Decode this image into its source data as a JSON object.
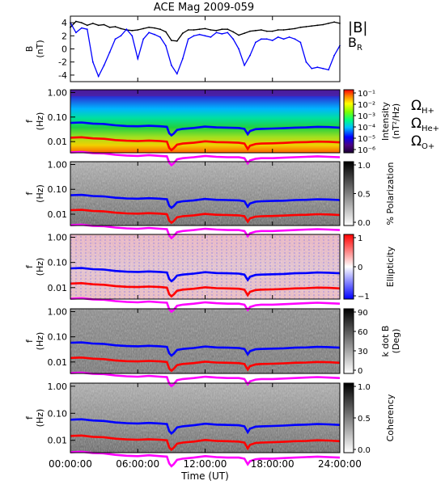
{
  "chart_data": {
    "title": "ACE Mag 2009-059",
    "xlabel": "Time (UT)",
    "x_ticks": [
      "00:00:00",
      "06:00:00",
      "12:00:00",
      "18:00:00",
      "24:00:00"
    ],
    "x_range_hours": [
      0,
      24
    ],
    "panels": [
      {
        "type": "line",
        "ylabel": "B",
        "yunit": "(nT)",
        "ylim": [
          -5,
          5
        ],
        "y_ticks": [
          4,
          2,
          0,
          -2,
          -4
        ],
        "legend": [
          {
            "label": "|B|",
            "color": "#000000"
          },
          {
            "label": "B",
            "sub": "R",
            "color": "#0000ff"
          }
        ],
        "series": [
          {
            "name": "|B|",
            "color": "#000000",
            "x": [
              0,
              0.5,
              1,
              1.5,
              2,
              2.5,
              3,
              3.5,
              4,
              4.5,
              5,
              5.5,
              6,
              6.5,
              7,
              7.5,
              8,
              8.5,
              9,
              9.5,
              10,
              10.5,
              11,
              11.5,
              12,
              12.5,
              13,
              13.5,
              14,
              14.5,
              15,
              15.5,
              16,
              16.5,
              17,
              17.5,
              18,
              18.5,
              19,
              19.5,
              20,
              20.5,
              21,
              21.5,
              22,
              22.5,
              23,
              23.5,
              24
            ],
            "y": [
              3.3,
              4.2,
              4.0,
              3.6,
              3.9,
              3.6,
              3.7,
              3.3,
              3.4,
              3.1,
              2.9,
              2.8,
              2.9,
              3.1,
              3.3,
              3.2,
              3.0,
              2.6,
              1.3,
              1.2,
              2.4,
              2.9,
              2.9,
              3.0,
              3.1,
              2.9,
              2.8,
              3.0,
              3.0,
              2.6,
              2.1,
              2.4,
              2.7,
              2.8,
              2.9,
              2.7,
              2.7,
              2.9,
              2.9,
              3.0,
              3.1,
              3.3,
              3.4,
              3.5,
              3.6,
              3.7,
              3.9,
              4.1,
              3.9
            ]
          },
          {
            "name": "B_R",
            "color": "#0000ff",
            "x": [
              0,
              0.5,
              1,
              1.5,
              2,
              2.5,
              3,
              3.5,
              4,
              4.5,
              5,
              5.5,
              6,
              6.5,
              7,
              7.5,
              8,
              8.5,
              9,
              9.5,
              10,
              10.5,
              11,
              11.5,
              12,
              12.5,
              13,
              13.5,
              14,
              14.5,
              15,
              15.5,
              16,
              16.5,
              17,
              17.5,
              18,
              18.5,
              19,
              19.5,
              20,
              20.5,
              21,
              21.5,
              22,
              22.5,
              23,
              23.5,
              24
            ],
            "y": [
              4.0,
              2.5,
              3.2,
              3.0,
              -2.0,
              -4.2,
              -2.5,
              -0.5,
              1.5,
              2.0,
              3.0,
              2.0,
              -1.5,
              1.5,
              2.5,
              2.2,
              1.8,
              0.5,
              -2.5,
              -3.8,
              -1.5,
              1.5,
              2.0,
              2.2,
              2.0,
              1.8,
              2.5,
              2.3,
              2.5,
              1.5,
              0,
              -2.5,
              -1.0,
              1.0,
              1.5,
              1.5,
              1.3,
              1.8,
              1.5,
              1.8,
              1.5,
              1.0,
              -2.0,
              -3.0,
              -2.8,
              -3.0,
              -3.2,
              -1.0,
              0.5
            ]
          }
        ]
      },
      {
        "type": "heatmap",
        "ylabel": "f",
        "yunit": "(Hz)",
        "y_ticks": [
          "1.00",
          "0.10",
          "0.01"
        ],
        "colorbar": {
          "label": "Intensity",
          "unit": "(nT²/Hz)",
          "ticks": [
            "10⁻¹",
            "10⁻²",
            "10⁻³",
            "10⁻⁴",
            "10⁻⁵",
            "10⁻⁶"
          ],
          "colormap": "rainbow"
        },
        "legend": [
          {
            "label": "Ω",
            "sub": "H+",
            "color": "#0000ff"
          },
          {
            "label": "Ω",
            "sub": "He+",
            "color": "#ff0000"
          },
          {
            "label": "Ω",
            "sub": "O+",
            "color": "#ff00ff"
          }
        ]
      },
      {
        "type": "heatmap",
        "ylabel": "f",
        "yunit": "(Hz)",
        "y_ticks": [
          "1.00",
          "0.10",
          "0.01"
        ],
        "colorbar": {
          "label": "% Polarization",
          "unit": "",
          "ticks": [
            "1.0",
            "0.5",
            "0.0"
          ],
          "colormap": "gray"
        }
      },
      {
        "type": "heatmap",
        "ylabel": "f",
        "yunit": "(Hz)",
        "y_ticks": [
          "1.00",
          "0.10",
          "0.01"
        ],
        "colorbar": {
          "label": "Ellipticity",
          "unit": "",
          "ticks": [
            "1",
            "0",
            "−1"
          ],
          "colormap": "bwr"
        }
      },
      {
        "type": "heatmap",
        "ylabel": "f",
        "yunit": "(Hz)",
        "y_ticks": [
          "1.00",
          "0.10",
          "0.01"
        ],
        "colorbar": {
          "label": "k dot B",
          "unit": "(Deg)",
          "ticks": [
            "90",
            "60",
            "30",
            "0"
          ],
          "colormap": "gray"
        }
      },
      {
        "type": "heatmap",
        "ylabel": "f",
        "yunit": "(Hz)",
        "y_ticks": [
          "1.00",
          "0.10",
          "0.01"
        ],
        "colorbar": {
          "label": "Coherency",
          "unit": "",
          "ticks": [
            "1.0",
            "0.5",
            "0.0"
          ],
          "colormap": "gray"
        }
      }
    ],
    "gyrofrequency_curves_hz": {
      "x": [
        0,
        1,
        2,
        3,
        4,
        5,
        6,
        7,
        8,
        8.6,
        8.8,
        9,
        9.2,
        9.5,
        10,
        11,
        12,
        13,
        14,
        15,
        15.5,
        15.8,
        16,
        16.5,
        17,
        18,
        19,
        20,
        21,
        22,
        23,
        24
      ],
      "H+": [
        0.058,
        0.06,
        0.054,
        0.052,
        0.046,
        0.043,
        0.042,
        0.044,
        0.042,
        0.04,
        0.022,
        0.018,
        0.021,
        0.03,
        0.033,
        0.036,
        0.041,
        0.038,
        0.037,
        0.036,
        0.033,
        0.02,
        0.027,
        0.032,
        0.033,
        0.034,
        0.035,
        0.037,
        0.038,
        0.04,
        0.039,
        0.037
      ],
      "He+": [
        0.0145,
        0.015,
        0.0135,
        0.013,
        0.0115,
        0.0108,
        0.0105,
        0.011,
        0.0105,
        0.01,
        0.0055,
        0.0045,
        0.0053,
        0.0075,
        0.0083,
        0.009,
        0.0103,
        0.0095,
        0.0093,
        0.009,
        0.0083,
        0.005,
        0.0068,
        0.008,
        0.0083,
        0.0085,
        0.0088,
        0.0093,
        0.0095,
        0.01,
        0.0098,
        0.0093
      ],
      "O+": [
        0.0036,
        0.0038,
        0.0034,
        0.0033,
        0.0029,
        0.0027,
        0.0026,
        0.0028,
        0.0026,
        0.0025,
        0.0014,
        0.0011,
        0.0013,
        0.0019,
        0.0021,
        0.0023,
        0.0026,
        0.0024,
        0.0023,
        0.0023,
        0.0021,
        0.0013,
        0.0017,
        0.002,
        0.0021,
        0.0021,
        0.0022,
        0.0023,
        0.0024,
        0.0025,
        0.0024,
        0.0023
      ]
    },
    "freq_range_hz": [
      0.0035,
      1.3
    ],
    "grid": false
  }
}
